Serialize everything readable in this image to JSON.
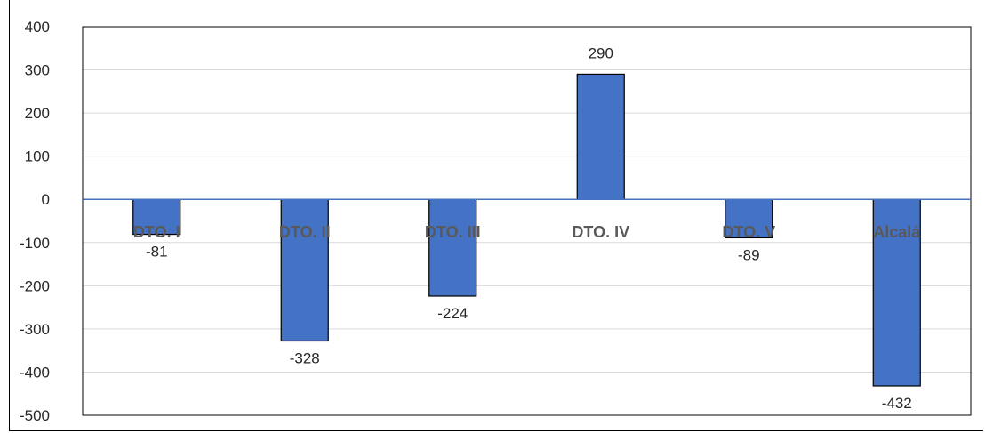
{
  "chart_data": {
    "type": "bar",
    "categories": [
      "DTO. I",
      "DTO. II",
      "DTO. III",
      "DTO. IV",
      "DTO. V",
      "Alcalá"
    ],
    "values": [
      -81,
      -328,
      -224,
      290,
      -89,
      -432
    ],
    "data_labels": [
      "-81",
      "-328",
      "-224",
      "290",
      "-89",
      "-432"
    ],
    "title": "",
    "xlabel": "",
    "ylabel": "",
    "ylim": [
      -500,
      400
    ],
    "yticks": [
      400,
      300,
      200,
      100,
      0,
      -100,
      -200,
      -300,
      -400,
      -500
    ],
    "grid": true,
    "legend": "none",
    "colors": {
      "bar": "#4472C4",
      "bar_border": "#000000",
      "zero_line": "#4472C4",
      "grid": "#D9D9D9"
    }
  }
}
